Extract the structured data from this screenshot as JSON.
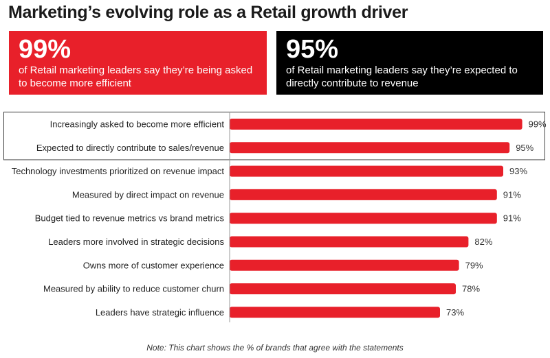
{
  "title": "Marketing’s evolving role as a Retail growth driver",
  "stats": [
    {
      "value": "99%",
      "text": "of Retail marketing leaders say they’re being asked to become more efficient",
      "color": "#e8202a"
    },
    {
      "value": "95%",
      "text": "of Retail marketing leaders say they’re expected to directly contribute to revenue",
      "color": "#000000"
    }
  ],
  "chart_data": {
    "type": "bar",
    "orientation": "horizontal",
    "categories": [
      "Increasingly asked to become more efficient",
      "Expected to directly contribute to sales/revenue",
      "Technology investments prioritized on revenue impact",
      "Measured by direct impact on revenue",
      "Budget tied to revenue metrics vs brand metrics",
      "Leaders more involved in strategic decisions",
      "Owns more of customer experience",
      "Measured by ability to reduce customer churn",
      "Leaders have strategic influence"
    ],
    "values": [
      99,
      95,
      93,
      91,
      91,
      82,
      79,
      78,
      73
    ],
    "labels": [
      "99%",
      "95%",
      "93%",
      "91%",
      "91%",
      "82%",
      "79%",
      "78%",
      "73%"
    ],
    "highlighted": [
      0,
      1
    ],
    "bar_color": "#e8202a",
    "grid": false
  },
  "note": "Note: This chart shows the % of brands that agree with the statements"
}
